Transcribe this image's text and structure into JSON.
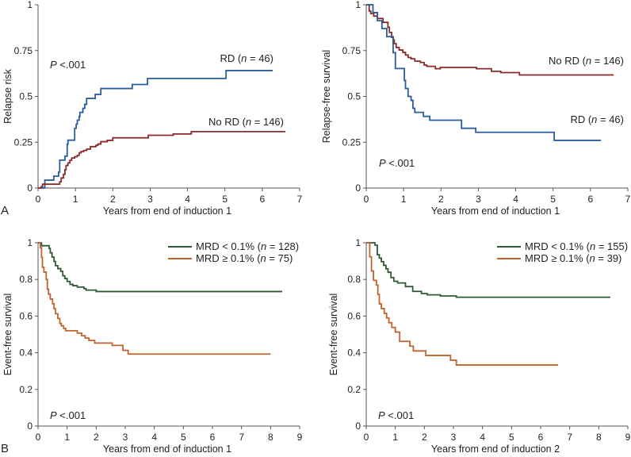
{
  "figure": {
    "panel_letters": [
      "A",
      "B"
    ]
  },
  "chart_data": [
    {
      "id": "A-left",
      "type": "line",
      "subtype": "step",
      "title": "",
      "xlabel": "Years from end of induction 1",
      "ylabel": "Relapse risk",
      "xlim": [
        0,
        7
      ],
      "ylim": [
        0,
        1
      ],
      "xticks": [
        "0",
        "1",
        "2",
        "3",
        "4",
        "5",
        "6",
        "7"
      ],
      "yticks": [
        "0",
        "0.25",
        "0.5",
        "0.75",
        "1"
      ],
      "ytick_values": [
        0,
        0.25,
        0.5,
        0.75,
        1
      ],
      "annotation": "P <.001",
      "series": [
        {
          "name": "RD",
          "label_prefix": "RD (",
          "label_n": "n",
          "label_suffix": " = 46)",
          "color": "#2a5d9c",
          "x": [
            0,
            0.18,
            0.42,
            0.55,
            0.58,
            0.72,
            0.78,
            0.8,
            0.98,
            1.02,
            1.05,
            1.1,
            1.12,
            1.2,
            1.25,
            1.3,
            1.53,
            1.68,
            2.52,
            2.93,
            5.03,
            6.28
          ],
          "y": [
            0,
            0.043,
            0.065,
            0.087,
            0.152,
            0.174,
            0.239,
            0.261,
            0.326,
            0.348,
            0.37,
            0.391,
            0.413,
            0.435,
            0.457,
            0.489,
            0.511,
            0.543,
            0.565,
            0.598,
            0.641,
            0.641
          ]
        },
        {
          "name": "No RD",
          "label_prefix": "No RD (",
          "label_n": "n",
          "label_suffix": " = 146)",
          "color": "#8b2a2a",
          "x": [
            0,
            0.08,
            0.12,
            0.58,
            0.62,
            0.68,
            0.72,
            0.75,
            0.8,
            0.85,
            0.9,
            0.98,
            1.05,
            1.1,
            1.15,
            1.22,
            1.3,
            1.4,
            1.55,
            1.6,
            1.68,
            1.85,
            2.0,
            2.95,
            3.62,
            4.1,
            6.62
          ],
          "y": [
            0,
            0.007,
            0.021,
            0.034,
            0.055,
            0.075,
            0.1,
            0.123,
            0.137,
            0.151,
            0.164,
            0.171,
            0.178,
            0.192,
            0.199,
            0.205,
            0.212,
            0.226,
            0.233,
            0.24,
            0.253,
            0.26,
            0.274,
            0.288,
            0.295,
            0.308,
            0.308
          ]
        }
      ]
    },
    {
      "id": "A-right",
      "type": "line",
      "subtype": "step",
      "title": "",
      "xlabel": "Years from end of induction 1",
      "ylabel": "Relapse-free survival",
      "xlim": [
        0,
        7
      ],
      "ylim": [
        0,
        1
      ],
      "xticks": [
        "0",
        "1",
        "2",
        "3",
        "4",
        "5",
        "6",
        "7"
      ],
      "yticks": [
        "0",
        "0.25",
        "0.5",
        "0.75",
        "1"
      ],
      "ytick_values": [
        0,
        0.25,
        0.5,
        0.75,
        1
      ],
      "annotation": "P <.001",
      "series": [
        {
          "name": "No RD",
          "label_prefix": "No RD (",
          "label_n": "n",
          "label_suffix": " = 146)",
          "color": "#8b2a2a",
          "x": [
            0,
            0.08,
            0.12,
            0.2,
            0.3,
            0.45,
            0.58,
            0.62,
            0.68,
            0.72,
            0.75,
            0.8,
            0.88,
            0.98,
            1.05,
            1.12,
            1.2,
            1.3,
            1.45,
            1.55,
            1.62,
            1.85,
            1.98,
            2.95,
            3.35,
            3.6,
            4.1,
            6.62
          ],
          "y": [
            1,
            0.966,
            0.952,
            0.938,
            0.925,
            0.904,
            0.877,
            0.849,
            0.822,
            0.808,
            0.788,
            0.767,
            0.753,
            0.74,
            0.726,
            0.712,
            0.705,
            0.692,
            0.685,
            0.671,
            0.664,
            0.651,
            0.658,
            0.651,
            0.637,
            0.63,
            0.617,
            0.617
          ]
        },
        {
          "name": "RD",
          "label_prefix": "RD (",
          "label_n": "n",
          "label_suffix": " = 46)",
          "color": "#2a5d9c",
          "x": [
            0,
            0.18,
            0.3,
            0.42,
            0.55,
            0.72,
            0.78,
            1.02,
            1.05,
            1.12,
            1.2,
            1.25,
            1.3,
            1.53,
            1.7,
            2.55,
            2.93,
            5.03,
            6.28
          ],
          "y": [
            1,
            0.957,
            0.913,
            0.87,
            0.826,
            0.739,
            0.652,
            0.587,
            0.543,
            0.5,
            0.478,
            0.435,
            0.413,
            0.391,
            0.37,
            0.326,
            0.304,
            0.26,
            0.26
          ]
        }
      ]
    },
    {
      "id": "B-left",
      "type": "line",
      "subtype": "step",
      "title": "",
      "xlabel": "Years from end of induction 1",
      "ylabel": "Event-free survival",
      "xlim": [
        0,
        9
      ],
      "ylim": [
        0,
        1
      ],
      "xticks": [
        "0",
        "1",
        "2",
        "3",
        "4",
        "5",
        "6",
        "7",
        "8",
        "9"
      ],
      "yticks": [
        "0",
        "0.2",
        "0.4",
        "0.6",
        "0.8",
        "1"
      ],
      "ytick_values": [
        0,
        0.2,
        0.4,
        0.6,
        0.8,
        1
      ],
      "annotation": "P <.001",
      "legend": "top-right",
      "series": [
        {
          "name": "MRD < 0.1%",
          "label_prefix": "MRD < 0.1% (",
          "label_n": "n",
          "label_suffix": " = 128)",
          "color": "#2f5a36",
          "x": [
            0,
            0.12,
            0.38,
            0.42,
            0.48,
            0.55,
            0.6,
            0.68,
            0.78,
            0.85,
            0.92,
            1.0,
            1.1,
            1.2,
            1.35,
            1.58,
            1.65,
            2.0,
            8.4
          ],
          "y": [
            1,
            0.984,
            0.969,
            0.945,
            0.922,
            0.898,
            0.875,
            0.859,
            0.844,
            0.82,
            0.805,
            0.789,
            0.773,
            0.766,
            0.758,
            0.75,
            0.742,
            0.734,
            0.734
          ]
        },
        {
          "name": "MRD ≥ 0.1%",
          "label_prefix": "MRD ≥ 0.1% (",
          "label_n": "n",
          "label_suffix": " = 75)",
          "color": "#c0632e",
          "x": [
            0,
            0.08,
            0.12,
            0.15,
            0.2,
            0.28,
            0.32,
            0.36,
            0.42,
            0.5,
            0.55,
            0.6,
            0.68,
            0.75,
            0.8,
            0.88,
            0.95,
            1.35,
            1.5,
            1.62,
            1.75,
            1.95,
            2.55,
            2.92,
            3.1,
            8.0
          ],
          "y": [
            1,
            0.973,
            0.92,
            0.867,
            0.84,
            0.8,
            0.747,
            0.72,
            0.693,
            0.667,
            0.64,
            0.613,
            0.587,
            0.56,
            0.547,
            0.533,
            0.52,
            0.507,
            0.493,
            0.48,
            0.467,
            0.453,
            0.44,
            0.413,
            0.393,
            0.393
          ]
        }
      ]
    },
    {
      "id": "B-right",
      "type": "line",
      "subtype": "step",
      "title": "",
      "xlabel": "Years from end of induction 2",
      "ylabel": "Event-free survival",
      "xlim": [
        0,
        9
      ],
      "ylim": [
        0,
        1
      ],
      "xticks": [
        "0",
        "1",
        "2",
        "3",
        "4",
        "5",
        "6",
        "7",
        "8",
        "9"
      ],
      "yticks": [
        "0",
        "0.2",
        "0.4",
        "0.6",
        "0.8",
        "1"
      ],
      "ytick_values": [
        0,
        0.2,
        0.4,
        0.6,
        0.8,
        1
      ],
      "annotation": "P <.001",
      "legend": "top-right",
      "series": [
        {
          "name": "MRD < 0.1%",
          "label_prefix": "MRD < 0.1% (",
          "label_n": "n",
          "label_suffix": " = 155)",
          "color": "#2f5a36",
          "x": [
            0,
            0.3,
            0.38,
            0.45,
            0.52,
            0.6,
            0.68,
            0.75,
            0.85,
            0.95,
            1.08,
            1.35,
            1.6,
            1.9,
            2.1,
            2.55,
            3.1,
            8.4
          ],
          "y": [
            1,
            0.987,
            0.935,
            0.916,
            0.897,
            0.877,
            0.858,
            0.839,
            0.81,
            0.79,
            0.781,
            0.761,
            0.735,
            0.723,
            0.716,
            0.71,
            0.703,
            0.703
          ]
        },
        {
          "name": "MRD ≥ 0.1%",
          "label_prefix": "MRD ≥ 0.1% (",
          "label_n": "n",
          "label_suffix": " = 39)",
          "color": "#c0632e",
          "x": [
            0,
            0.12,
            0.18,
            0.25,
            0.35,
            0.4,
            0.45,
            0.52,
            0.62,
            0.7,
            0.78,
            0.88,
            1.0,
            1.15,
            1.5,
            1.62,
            2.05,
            2.9,
            3.1,
            6.6
          ],
          "y": [
            1,
            0.923,
            0.846,
            0.795,
            0.769,
            0.718,
            0.667,
            0.641,
            0.615,
            0.59,
            0.564,
            0.538,
            0.513,
            0.462,
            0.436,
            0.41,
            0.385,
            0.359,
            0.333,
            0.333
          ]
        }
      ]
    }
  ]
}
